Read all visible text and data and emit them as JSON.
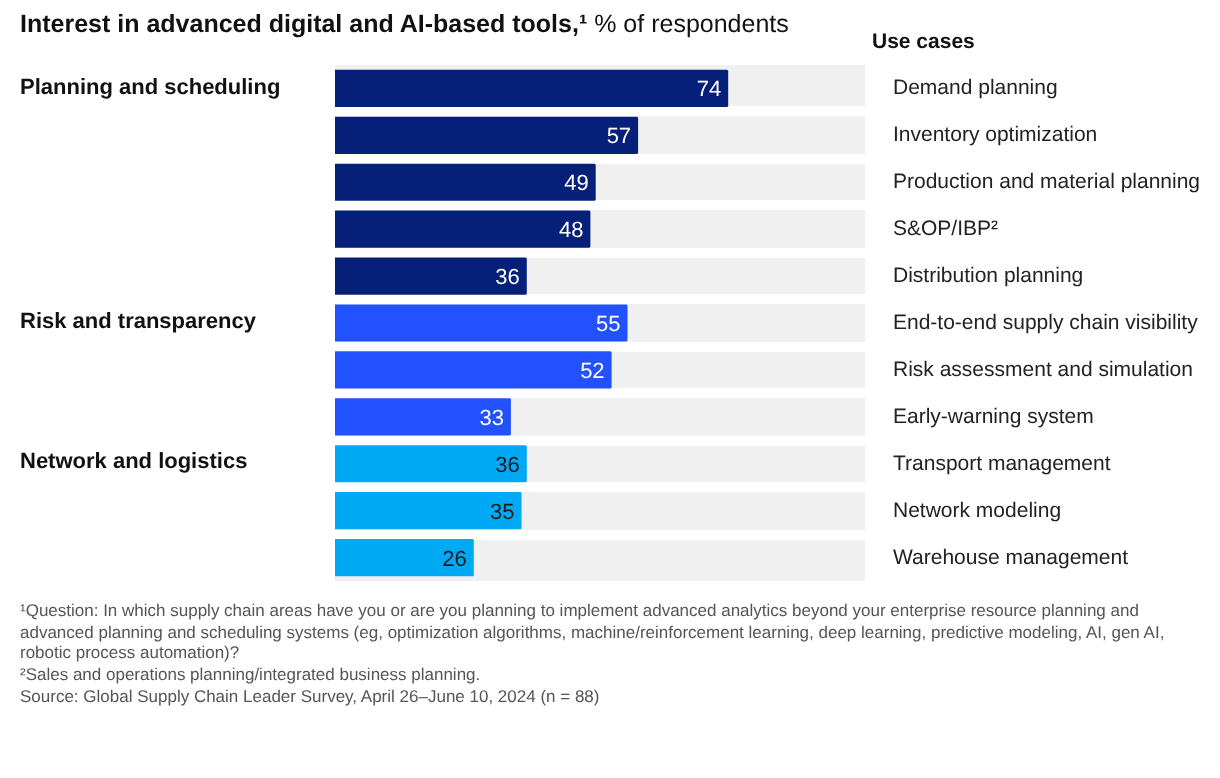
{
  "chart_data": {
    "type": "bar",
    "orientation": "horizontal",
    "title": "Interest in advanced digital and AI-based tools,¹",
    "subtitle": "% of respondents",
    "ylabel": "Use cases",
    "categories": [
      "Demand planning",
      "Inventory optimization",
      "Production and material planning",
      "S&OP/IBP²",
      "Distribution planning",
      "End-to-end supply chain visibility",
      "Risk assessment and simulation",
      "Early-warning system",
      "Transport management",
      "Network modeling",
      "Warehouse management"
    ],
    "values": [
      74,
      57,
      49,
      48,
      36,
      55,
      52,
      33,
      36,
      35,
      26
    ],
    "colors": [
      "#061f79",
      "#061f79",
      "#061f79",
      "#061f79",
      "#061f79",
      "#2251ff",
      "#2251ff",
      "#2251ff",
      "#00a9f4",
      "#00a9f4",
      "#00a9f4"
    ],
    "xlim": [
      0,
      100
    ],
    "data_labels": true,
    "grid": "y",
    "tick_labels": "y",
    "annotations": [
      "Planning and scheduling",
      "Risk and transparency",
      "Network and logistics",
      "¹Question: In which supply chain areas have you or are you planning to implement advanced analytics beyond your enterprise resource planning and advanced planning and scheduling systems (eg, optimization algorithms, machine/reinforcement learning, deep learning, predictive modeling, AI, gen AI, robotic process automation)?",
      "²Sales and operations planning/integrated business planning.",
      "Source: Global Supply Chain Leader Survey, April 26–June 10, 2024 (n = 88)"
    ]
  }
}
